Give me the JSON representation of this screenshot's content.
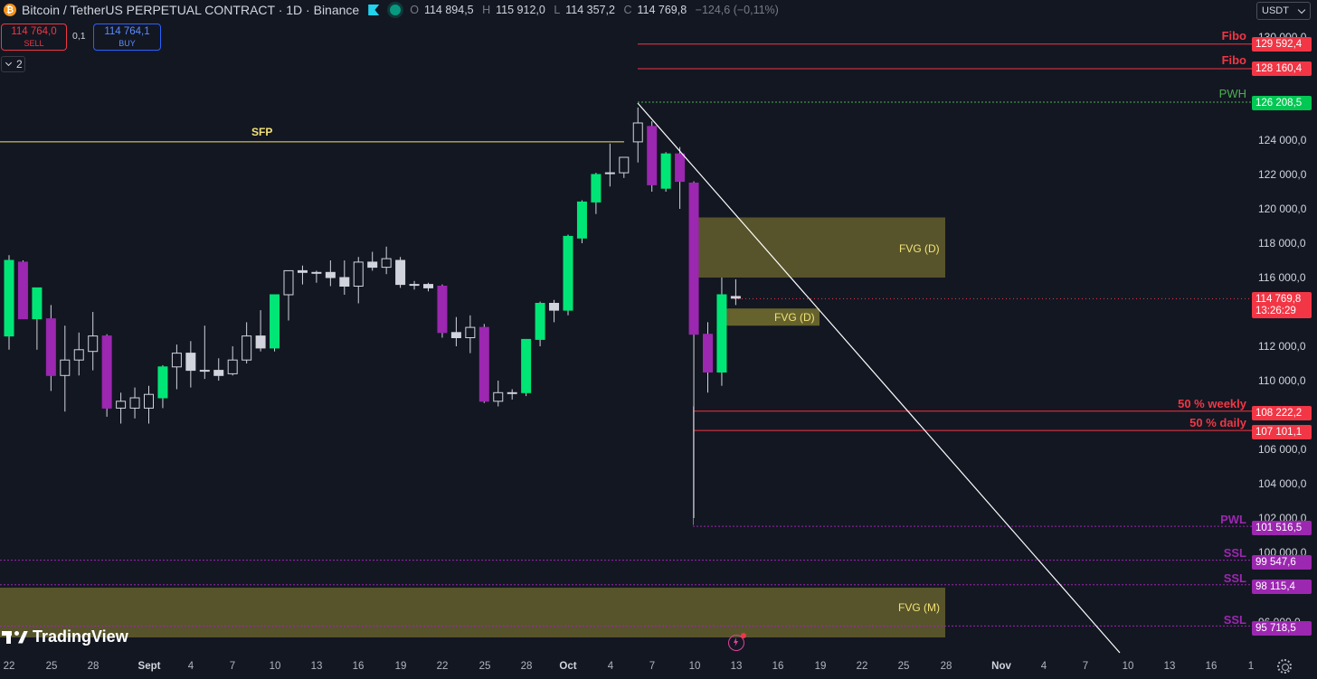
{
  "header": {
    "title": "Bitcoin / TetherUS PERPETUAL CONTRACT · 1D · Binance",
    "ohlc": [
      {
        "k": "O",
        "v": "114 894,5"
      },
      {
        "k": "H",
        "v": "115 912,0"
      },
      {
        "k": "L",
        "v": "114 357,2"
      },
      {
        "k": "C",
        "v": "114 769,8"
      }
    ],
    "change": "−124,6 (−0,11%)"
  },
  "currency": "USDT",
  "trade": {
    "sell_price": "114 764,0",
    "sell_label": "SELL",
    "spread": "0,1",
    "buy_price": "114 764,1",
    "buy_label": "BUY"
  },
  "indicators_count": "2",
  "price_axis": [
    "130 000,0",
    "124 000,0",
    "122 000,0",
    "120 000,0",
    "118 000,0",
    "116 000,0",
    "112 000,0",
    "110 000,0",
    "106 000,0",
    "104 000,0",
    "102 000,0",
    "100 000,0",
    "96 000,0"
  ],
  "price_levels": [
    {
      "name": "Fibo",
      "price": "129 592,4",
      "color": "#f23645"
    },
    {
      "name": "Fibo",
      "price": "128 160,4",
      "color": "#f23645"
    },
    {
      "name": "PWH",
      "price": "126 208,5",
      "color": "#4caf50"
    },
    {
      "name": "50 % weekly",
      "price": "108 222,2",
      "color": "#f23645"
    },
    {
      "name": "50 % daily",
      "price": "107 101,1",
      "color": "#f23645"
    },
    {
      "name": "PWL",
      "price": "101 516,5",
      "color": "#9c27b0"
    },
    {
      "name": "SSL",
      "price": "99 547,6",
      "color": "#9c27b0"
    },
    {
      "name": "SSL",
      "price": "98 115,4",
      "color": "#9c27b0"
    },
    {
      "name": "SSL",
      "price": "95 718,5",
      "color": "#9c27b0"
    }
  ],
  "current_price": {
    "price": "114 769,8",
    "countdown": "13:26:29"
  },
  "annotations": {
    "sfp": "SFP",
    "fvg_d1": "FVG (D)",
    "fvg_d2": "FVG (D)",
    "fvg_m": "FVG (M)"
  },
  "time_axis": [
    "22",
    "25",
    "28",
    "Sept",
    "4",
    "7",
    "10",
    "13",
    "16",
    "19",
    "22",
    "25",
    "28",
    "Oct",
    "4",
    "7",
    "10",
    "13",
    "16",
    "19",
    "22",
    "25",
    "28",
    "Nov",
    "4",
    "7",
    "10",
    "13",
    "16",
    "1"
  ],
  "logo": "TradingView",
  "colors": {
    "bull": "#00e676",
    "bear": "#9c27b0",
    "neutral": "#d1d4dc",
    "bg": "#131722"
  },
  "candles": [
    {
      "o": 112600,
      "h": 117300,
      "l": 111800,
      "c": 117000
    },
    {
      "o": 116900,
      "h": 117000,
      "l": 113600,
      "c": 113600
    },
    {
      "o": 113600,
      "h": 115400,
      "l": 111800,
      "c": 115400
    },
    {
      "o": 113600,
      "h": 114400,
      "l": 109400,
      "c": 110300
    },
    {
      "o": 110300,
      "h": 113200,
      "l": 108200,
      "c": 111200
    },
    {
      "o": 111200,
      "h": 112800,
      "l": 110300,
      "c": 111800
    },
    {
      "o": 111700,
      "h": 114000,
      "l": 110600,
      "c": 112600
    },
    {
      "o": 112600,
      "h": 112700,
      "l": 107900,
      "c": 108400
    },
    {
      "o": 108400,
      "h": 109300,
      "l": 107500,
      "c": 108800
    },
    {
      "o": 108400,
      "h": 109600,
      "l": 107800,
      "c": 109000
    },
    {
      "o": 108400,
      "h": 109700,
      "l": 107500,
      "c": 109200
    },
    {
      "o": 109000,
      "h": 110900,
      "l": 108400,
      "c": 110800
    },
    {
      "o": 110800,
      "h": 112100,
      "l": 109500,
      "c": 111600
    },
    {
      "o": 111600,
      "h": 112300,
      "l": 109600,
      "c": 110600
    },
    {
      "o": 110600,
      "h": 113200,
      "l": 110100,
      "c": 110600
    },
    {
      "o": 110600,
      "h": 111300,
      "l": 110000,
      "c": 110300
    },
    {
      "o": 110400,
      "h": 112000,
      "l": 110300,
      "c": 111200
    },
    {
      "o": 111200,
      "h": 113400,
      "l": 111000,
      "c": 112600
    },
    {
      "o": 112600,
      "h": 114100,
      "l": 111700,
      "c": 111900
    },
    {
      "o": 111900,
      "h": 115000,
      "l": 111700,
      "c": 115000
    },
    {
      "o": 115000,
      "h": 116400,
      "l": 113500,
      "c": 116400
    },
    {
      "o": 116400,
      "h": 116700,
      "l": 115600,
      "c": 116300
    },
    {
      "o": 116300,
      "h": 116400,
      "l": 115700,
      "c": 116300
    },
    {
      "o": 116300,
      "h": 117000,
      "l": 115500,
      "c": 116000
    },
    {
      "o": 116000,
      "h": 117000,
      "l": 115000,
      "c": 115500
    },
    {
      "o": 115500,
      "h": 117200,
      "l": 114500,
      "c": 116900
    },
    {
      "o": 116900,
      "h": 117500,
      "l": 116400,
      "c": 116600
    },
    {
      "o": 116600,
      "h": 117800,
      "l": 116200,
      "c": 117100
    },
    {
      "o": 117000,
      "h": 117200,
      "l": 115400,
      "c": 115600
    },
    {
      "o": 115600,
      "h": 115800,
      "l": 115300,
      "c": 115600
    },
    {
      "o": 115600,
      "h": 115700,
      "l": 115200,
      "c": 115400
    },
    {
      "o": 115500,
      "h": 115600,
      "l": 112500,
      "c": 112800
    },
    {
      "o": 112800,
      "h": 113700,
      "l": 112000,
      "c": 112500
    },
    {
      "o": 112500,
      "h": 113800,
      "l": 111600,
      "c": 113100
    },
    {
      "o": 113100,
      "h": 113300,
      "l": 108700,
      "c": 108800
    },
    {
      "o": 108800,
      "h": 110000,
      "l": 108500,
      "c": 109300
    },
    {
      "o": 109300,
      "h": 109500,
      "l": 108900,
      "c": 109300
    },
    {
      "o": 109300,
      "h": 112400,
      "l": 109100,
      "c": 112400
    },
    {
      "o": 112400,
      "h": 114600,
      "l": 112000,
      "c": 114500
    },
    {
      "o": 114500,
      "h": 114700,
      "l": 113400,
      "c": 114100
    },
    {
      "o": 114100,
      "h": 118500,
      "l": 113800,
      "c": 118400
    },
    {
      "o": 118300,
      "h": 120500,
      "l": 118000,
      "c": 120400
    },
    {
      "o": 120400,
      "h": 122100,
      "l": 119700,
      "c": 122000
    },
    {
      "o": 122100,
      "h": 123800,
      "l": 121300,
      "c": 122100
    },
    {
      "o": 122100,
      "h": 123000,
      "l": 121800,
      "c": 123000
    },
    {
      "o": 123900,
      "h": 125900,
      "l": 122700,
      "c": 125000
    },
    {
      "o": 124800,
      "h": 125100,
      "l": 121000,
      "c": 121400
    },
    {
      "o": 121200,
      "h": 123300,
      "l": 121000,
      "c": 123200
    },
    {
      "o": 123200,
      "h": 123600,
      "l": 120000,
      "c": 121600
    },
    {
      "o": 121500,
      "h": 121600,
      "l": 102000,
      "c": 112700
    },
    {
      "o": 112700,
      "h": 113400,
      "l": 109300,
      "c": 110500
    },
    {
      "o": 110500,
      "h": 116000,
      "l": 109700,
      "c": 115000
    },
    {
      "o": 114900,
      "h": 115900,
      "l": 114400,
      "c": 114800
    }
  ]
}
